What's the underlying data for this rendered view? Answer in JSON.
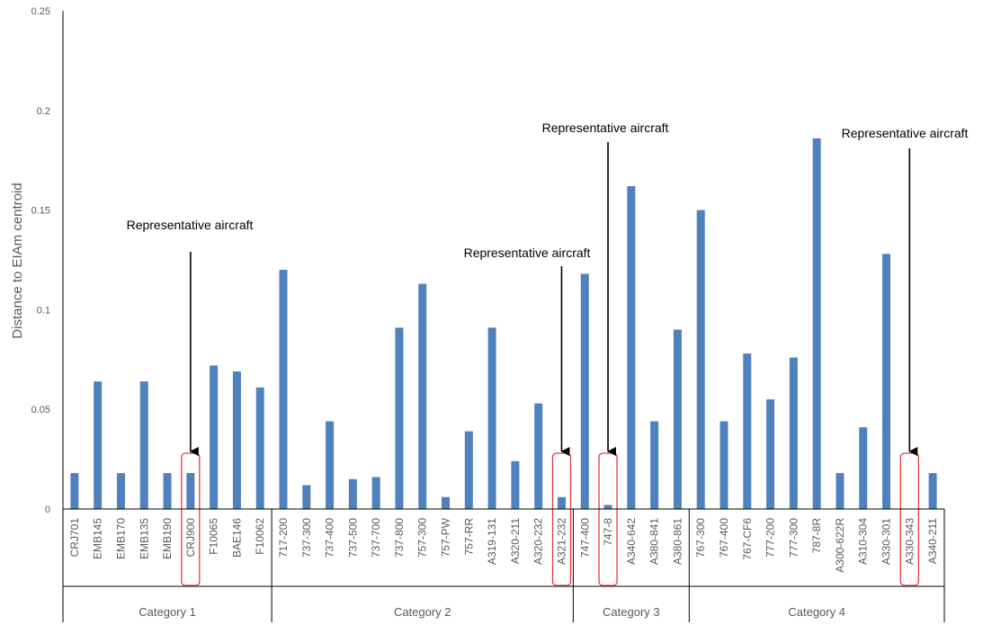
{
  "chart_data": {
    "type": "bar",
    "ylabel": "Distance to EIAm centroid",
    "ylim": [
      0,
      0.25
    ],
    "yticks": [
      "0",
      "0.05",
      "0.1",
      "0.15",
      "0.2",
      "0.25"
    ],
    "grid": false,
    "bar_color": "#4f81bd",
    "highlight_color": "#e23b3b",
    "categories": [
      "CRJ701",
      "EMB145",
      "EMB170",
      "EMB135",
      "EMB190",
      "CRJ900",
      "F10065",
      "BAE146",
      "F10062",
      "717-200",
      "737-300",
      "737-400",
      "737-500",
      "737-700",
      "737-800",
      "757-300",
      "757-PW",
      "757-RR",
      "A319-131",
      "A320-211",
      "A320-232",
      "A321-232",
      "747-400",
      "747-8",
      "A340-642",
      "A380-841",
      "A380-861",
      "767-300",
      "767-400",
      "767-CF6",
      "777-200",
      "777-300",
      "787-8R",
      "A300-622R",
      "A310-304",
      "A330-301",
      "A330-343",
      "A340-211"
    ],
    "values": [
      0.018,
      0.064,
      0.018,
      0.064,
      0.018,
      0.018,
      0.072,
      0.069,
      0.061,
      0.12,
      0.012,
      0.044,
      0.015,
      0.016,
      0.091,
      0.113,
      0.006,
      0.039,
      0.091,
      0.024,
      0.053,
      0.006,
      0.118,
      0.002,
      0.162,
      0.044,
      0.09,
      0.15,
      0.044,
      0.078,
      0.055,
      0.076,
      0.186,
      0.018,
      0.041,
      0.128,
      0.0,
      0.018
    ],
    "groups": [
      {
        "label": "Category 1",
        "start": 0,
        "end": 8
      },
      {
        "label": "Category 2",
        "start": 9,
        "end": 21
      },
      {
        "label": "Category 3",
        "start": 22,
        "end": 26
      },
      {
        "label": "Category 4",
        "start": 27,
        "end": 37
      }
    ],
    "annotations": [
      {
        "text": "Representative aircraft",
        "target": 5
      },
      {
        "text": "Representative aircraft",
        "target": 21
      },
      {
        "text": "Representative aircraft",
        "target": 23
      },
      {
        "text": "Representative aircraft",
        "target": 36
      }
    ]
  }
}
